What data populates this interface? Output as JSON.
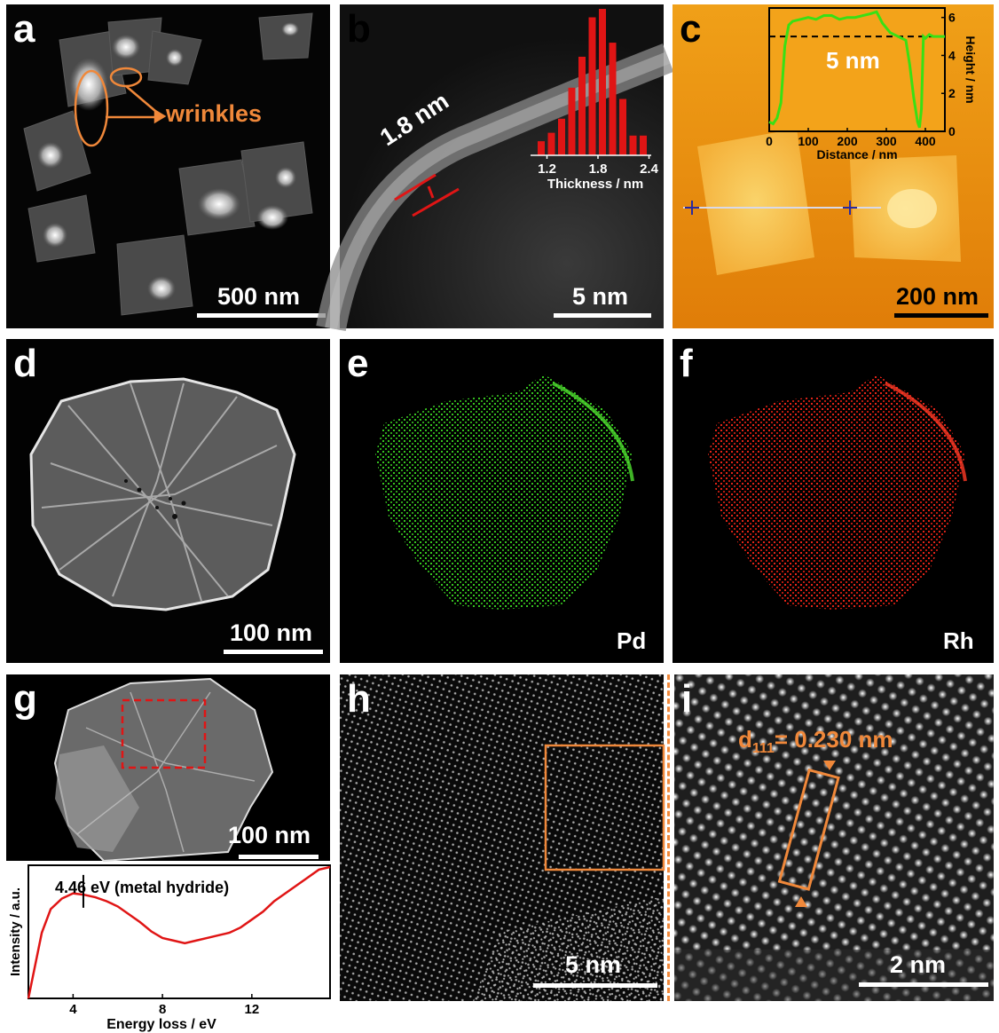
{
  "figure": {
    "panels": [
      {
        "letter": "a",
        "scale_bar": "500 nm",
        "annotation": "wrinkles"
      },
      {
        "letter": "b",
        "scale_bar": "5 nm",
        "thickness_label": "1.8 nm"
      },
      {
        "letter": "c",
        "scale_bar": "200 nm",
        "height_label": "5 nm"
      },
      {
        "letter": "d",
        "scale_bar": "100 nm"
      },
      {
        "letter": "e",
        "element": "Pd"
      },
      {
        "letter": "f",
        "element": "Rh"
      },
      {
        "letter": "g",
        "scale_bar": "100 nm"
      },
      {
        "letter": "h",
        "scale_bar": "5 nm"
      },
      {
        "letter": "i",
        "scale_bar": "2 nm",
        "d_spacing_prefix": "d",
        "d_spacing_sub": "111",
        "d_spacing_value": "= 0.230 nm"
      }
    ],
    "colors": {
      "annotation_orange": "#f0883a",
      "pd_green": "#35c21f",
      "rh_red": "#e02418",
      "bar_red": "#e01515",
      "afm_line_green": "#39e014"
    }
  },
  "chart_data": [
    {
      "type": "bar",
      "panel": "b",
      "xlabel": "Thickness / nm",
      "tick_labels": [
        "1.2",
        "1.8",
        "2.4"
      ],
      "categories": [
        1.1,
        1.2,
        1.3,
        1.4,
        1.5,
        1.6,
        1.7,
        1.8,
        1.9,
        2.0,
        2.1
      ],
      "values": [
        0.05,
        0.08,
        0.13,
        0.24,
        0.35,
        0.49,
        0.52,
        0.4,
        0.2,
        0.07,
        0.07
      ]
    },
    {
      "type": "line",
      "panel": "c",
      "xlabel": "Distance / nm",
      "ylabel": "Height / nm",
      "xlim": [
        0,
        450
      ],
      "ylim": [
        0,
        6.5
      ],
      "x_ticks": [
        "0",
        "100",
        "200",
        "300",
        "400"
      ],
      "y_ticks": [
        "0",
        "2",
        "4",
        "6"
      ],
      "reference_line_y": 5,
      "x": [
        0,
        10,
        20,
        30,
        40,
        50,
        60,
        80,
        100,
        120,
        140,
        160,
        180,
        200,
        220,
        240,
        260,
        275,
        290,
        310,
        330,
        350,
        360,
        370,
        380,
        385,
        390,
        395,
        400,
        410,
        420,
        430,
        440,
        450
      ],
      "y": [
        0.5,
        0.4,
        0.7,
        1.5,
        4.5,
        5.6,
        5.8,
        5.9,
        6.0,
        5.9,
        6.1,
        6.1,
        5.9,
        6.0,
        6.0,
        6.1,
        6.2,
        6.3,
        5.7,
        5.2,
        5.0,
        4.8,
        3.5,
        1.8,
        0.5,
        0.2,
        1.2,
        5.0,
        4.9,
        5.1,
        5.0,
        5.0,
        5.0,
        5.0
      ]
    },
    {
      "type": "line",
      "panel": "g",
      "xlabel": "Energy loss / eV",
      "ylabel": "Intensity / a.u.",
      "xlim": [
        2,
        15.5
      ],
      "x_ticks": [
        "4",
        "8",
        "12"
      ],
      "annotation": "4.46 eV (metal hydride)",
      "annotation_x": 4.46,
      "x": [
        2.0,
        2.3,
        2.6,
        3.0,
        3.5,
        4.0,
        4.46,
        5.0,
        5.5,
        6.0,
        6.5,
        7.0,
        7.5,
        8.0,
        8.5,
        9.0,
        9.5,
        10.0,
        10.5,
        11.0,
        11.5,
        12.0,
        12.5,
        13.0,
        13.5,
        14.0,
        14.5,
        15.0,
        15.5
      ],
      "y": [
        0.0,
        0.25,
        0.5,
        0.68,
        0.76,
        0.8,
        0.79,
        0.77,
        0.74,
        0.7,
        0.64,
        0.58,
        0.51,
        0.46,
        0.44,
        0.42,
        0.44,
        0.46,
        0.48,
        0.5,
        0.54,
        0.6,
        0.66,
        0.74,
        0.8,
        0.86,
        0.92,
        0.98,
        1.0
      ]
    }
  ]
}
